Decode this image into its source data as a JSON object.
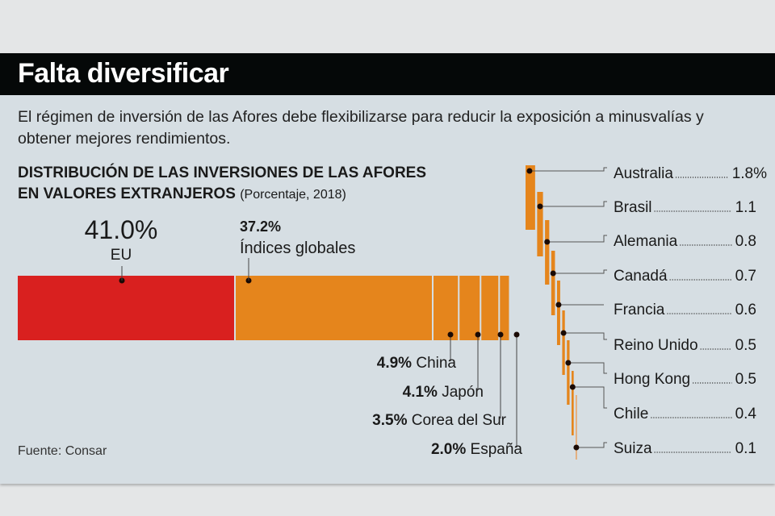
{
  "header": {
    "title": "Falta diversificar"
  },
  "subtitle": "El régimen de inversión de las Afores debe flexibilizarse para reducir la exposición a minusvalías y obtener mejores rendimientos.",
  "source": "Fuente: Consar",
  "chart_data": {
    "type": "bar",
    "orientation": "horizontal-stacked",
    "title": "DISTRIBUCIÓN DE LAS INVERSIONES DE LAS AFORES EN VALORES EXTRANJEROS",
    "title_line1": "DISTRIBUCIÓN DE LAS INVERSIONES DE LAS AFORES",
    "title_line2": "EN VALORES EXTRANJEROS",
    "note": "(Porcentaje, 2018)",
    "unit": "%",
    "colors": {
      "eu": "#d9201f",
      "other": "#e5851c",
      "dot": "#1a0a05"
    },
    "main_segments": [
      {
        "label": "EU",
        "value": 41.0,
        "value_text": "41.0%",
        "color": "#d9201f"
      },
      {
        "label": "Índices globales",
        "value": 37.2,
        "value_text": "37.2%",
        "color": "#e5851c"
      },
      {
        "label": "China",
        "value": 4.9,
        "value_text": "4.9%",
        "color": "#e5851c"
      },
      {
        "label": "Japón",
        "value": 4.1,
        "value_text": "4.1%",
        "color": "#e5851c"
      },
      {
        "label": "Corea del Sur",
        "value": 3.5,
        "value_text": "3.5%",
        "color": "#e5851c"
      },
      {
        "label": "España",
        "value": 2.0,
        "value_text": "2.0%",
        "color": "#e5851c"
      }
    ],
    "small_segments": [
      {
        "label": "Australia",
        "value": 1.8,
        "value_text": "1.8%"
      },
      {
        "label": "Brasil",
        "value": 1.1,
        "value_text": "1.1"
      },
      {
        "label": "Alemania",
        "value": 0.8,
        "value_text": "0.8"
      },
      {
        "label": "Canadá",
        "value": 0.7,
        "value_text": "0.7"
      },
      {
        "label": "Francia",
        "value": 0.6,
        "value_text": "0.6"
      },
      {
        "label": "Reino Unido",
        "value": 0.5,
        "value_text": "0.5"
      },
      {
        "label": "Hong Kong",
        "value": 0.5,
        "value_text": "0.5"
      },
      {
        "label": "Chile",
        "value": 0.4,
        "value_text": "0.4"
      },
      {
        "label": "Suiza",
        "value": 0.1,
        "value_text": "0.1"
      }
    ]
  }
}
